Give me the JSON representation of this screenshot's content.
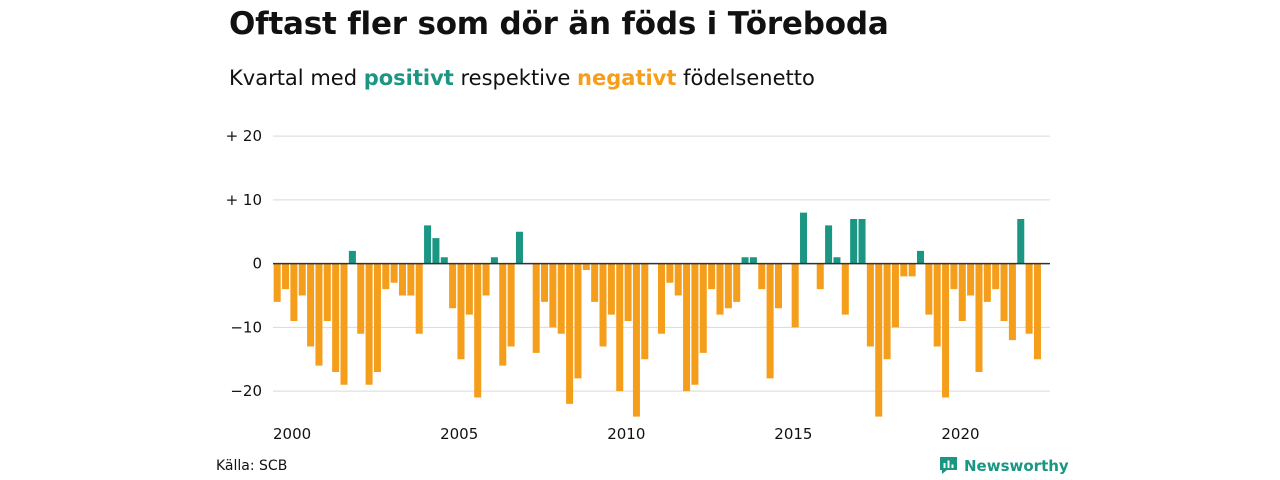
{
  "title": "Oftast fler som dör än föds i Töreboda",
  "subtitle": {
    "prefix": "Kvartal med ",
    "positive": "positivt",
    "middle": " respektive ",
    "negative": "negativt",
    "suffix": " födelsenetto"
  },
  "source": "Källa: SCB",
  "brand": "Newsworthy",
  "colors": {
    "positive": "#1a9683",
    "negative": "#f59e1b",
    "grid": "#d9d9d9",
    "zero": "#333333"
  },
  "chart_data": {
    "type": "bar",
    "title": "Oftast fler som dör än föds i Töreboda",
    "ylim": [
      -25,
      23
    ],
    "xlim": [
      2000,
      2023.25
    ],
    "yticks": [
      20,
      10,
      0,
      -10,
      -20
    ],
    "ytick_labels": [
      "+ 20",
      "+ 10",
      "0",
      "−10",
      "−20"
    ],
    "xticks": [
      2000,
      2005,
      2010,
      2015,
      2020
    ],
    "xtick_labels": [
      "2000",
      "2005",
      "2010",
      "2015",
      "2020"
    ],
    "grid": true,
    "start_year": 2000,
    "periods_per_year": 4,
    "values": [
      -6,
      -4,
      -9,
      -5,
      -13,
      -16,
      -9,
      -17,
      -19,
      2,
      -11,
      -19,
      -17,
      -4,
      -3,
      -5,
      -5,
      -11,
      6,
      4,
      1,
      -7,
      -15,
      -8,
      -21,
      -5,
      1,
      -16,
      -13,
      5,
      0,
      -14,
      -6,
      -10,
      -11,
      -22,
      -18,
      -1,
      -6,
      -13,
      -8,
      -20,
      -9,
      -24,
      -15,
      0,
      -11,
      -3,
      -5,
      -20,
      -19,
      -14,
      -4,
      -8,
      -7,
      -6,
      1,
      1,
      -4,
      -18,
      -7,
      0,
      -10,
      8,
      0,
      -4,
      6,
      1,
      -8,
      7,
      7,
      -13,
      -24,
      -15,
      -10,
      -2,
      -2,
      2,
      -8,
      -13,
      -21,
      -4,
      -9,
      -5,
      -17,
      -6,
      -4,
      -9,
      -12,
      7,
      -11,
      -15
    ]
  }
}
